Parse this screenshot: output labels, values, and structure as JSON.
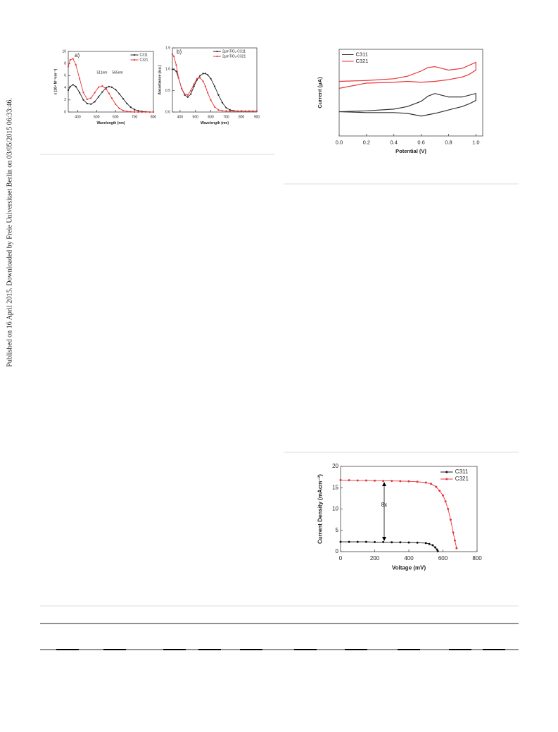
{
  "side_text": "Published on 16 April 2015. Downloaded by Freie Universitaet Berlin on 03/05/2015 06:33:46.",
  "chart_data": [
    {
      "type": "line",
      "markers": true,
      "legend": "upper right",
      "x_label": "Wavelength (nm)",
      "y_label": "ε (10⁴ M⁻¹cm⁻¹)",
      "annotations": [
        "a)",
        "511nm",
        "565nm"
      ],
      "xlim": [
        350,
        800
      ],
      "xticks": [
        400,
        500,
        600,
        700,
        800
      ],
      "ylim": [
        0,
        10
      ],
      "yticks": [
        0,
        2,
        4,
        6,
        8,
        10
      ],
      "series": [
        {
          "name": "C311",
          "color": "#222222",
          "x": [
            350,
            360,
            375,
            390,
            410,
            430,
            450,
            470,
            490,
            510,
            530,
            550,
            565,
            580,
            600,
            620,
            640,
            660,
            680,
            700,
            720,
            740,
            760,
            780,
            800
          ],
          "values": [
            3.6,
            4.2,
            4.5,
            4.2,
            3.2,
            2.0,
            1.4,
            1.3,
            1.7,
            2.5,
            3.3,
            4.0,
            4.2,
            4.1,
            3.7,
            3.0,
            2.2,
            1.4,
            0.8,
            0.4,
            0.2,
            0.1,
            0.05,
            0,
            0
          ]
        },
        {
          "name": "C321",
          "color": "#e8363a",
          "x": [
            350,
            360,
            375,
            390,
            410,
            430,
            450,
            470,
            490,
            510,
            530,
            550,
            565,
            580,
            600,
            620,
            640,
            660,
            680,
            700,
            720,
            740,
            760,
            780,
            800
          ],
          "values": [
            7.5,
            8.6,
            8.8,
            7.8,
            5.5,
            3.2,
            2.1,
            2.3,
            3.2,
            4.1,
            4.3,
            3.8,
            3.1,
            2.3,
            1.3,
            0.6,
            0.25,
            0.1,
            0.05,
            0,
            0,
            0,
            0,
            0,
            0
          ]
        }
      ]
    },
    {
      "type": "line",
      "markers": true,
      "legend": "upper right",
      "x_label": "Wavelength (nm)",
      "y_label": "Absorbance (a.u.)",
      "annotations": [
        "b)"
      ],
      "xlim": [
        350,
        900
      ],
      "xticks": [
        400,
        500,
        600,
        700,
        800,
        900
      ],
      "ylim": [
        0,
        1.5
      ],
      "yticks": [
        {
          "value": 0,
          "label": "0.0"
        },
        {
          "value": 0.5,
          "label": "0.5"
        },
        {
          "value": 1,
          "label": "1.0"
        },
        1.5
      ],
      "series": [
        {
          "name": "2μmTiO₂-C311",
          "color": "#222222",
          "x": [
            350,
            360,
            375,
            390,
            410,
            430,
            450,
            470,
            490,
            510,
            530,
            550,
            565,
            580,
            600,
            625,
            650,
            675,
            700,
            725,
            750,
            775,
            800,
            825,
            850,
            875,
            900
          ],
          "values": [
            1.0,
            1.0,
            0.95,
            0.8,
            0.55,
            0.4,
            0.35,
            0.42,
            0.6,
            0.75,
            0.85,
            0.9,
            0.9,
            0.87,
            0.78,
            0.6,
            0.4,
            0.22,
            0.1,
            0.05,
            0.03,
            0.02,
            0.02,
            0.02,
            0.02,
            0.02,
            0.02
          ]
        },
        {
          "name": "2μmTiO₂-C321",
          "color": "#e8363a",
          "x": [
            350,
            360,
            375,
            390,
            410,
            430,
            450,
            470,
            490,
            510,
            530,
            550,
            565,
            580,
            600,
            625,
            650,
            675,
            700,
            725,
            750,
            775,
            800,
            825,
            850,
            875,
            900
          ],
          "values": [
            1.35,
            1.3,
            1.1,
            0.8,
            0.55,
            0.42,
            0.4,
            0.5,
            0.65,
            0.78,
            0.8,
            0.72,
            0.6,
            0.45,
            0.28,
            0.12,
            0.05,
            0.03,
            0.02,
            0.02,
            0.02,
            0.02,
            0.02,
            0.02,
            0.02,
            0.02,
            0.02
          ]
        }
      ]
    },
    {
      "type": "line",
      "markers": false,
      "legend": "upper left",
      "x_label": "Potential (V)",
      "y_label": "Current (μA)",
      "annotations": [],
      "xlim": [
        0,
        1.05
      ],
      "xticks": [
        {
          "value": 0,
          "label": "0.0"
        },
        {
          "value": 0.2,
          "label": "0.2"
        },
        {
          "value": 0.4,
          "label": "0.4"
        },
        {
          "value": 0.6,
          "label": "0.6"
        },
        {
          "value": 0.8,
          "label": "0.8"
        },
        {
          "value": 1,
          "label": "1.0"
        }
      ],
      "ylim": [
        0,
        10
      ],
      "yticks": [],
      "series": [
        {
          "name": "C311",
          "color": "#333333",
          "x": [
            0,
            0.2,
            0.4,
            0.5,
            0.6,
            0.65,
            0.7,
            0.75,
            0.8,
            0.9,
            1.0,
            1.0,
            0.95,
            0.9,
            0.8,
            0.7,
            0.6,
            0.5,
            0.4,
            0.2,
            0
          ],
          "values": [
            2.8,
            2.9,
            3.1,
            3.4,
            4.0,
            4.6,
            4.9,
            4.7,
            4.5,
            4.5,
            4.9,
            4.1,
            3.7,
            3.4,
            3.0,
            2.6,
            2.3,
            2.6,
            2.7,
            2.7,
            2.8
          ]
        },
        {
          "name": "C321",
          "color": "#e8363a",
          "x": [
            0,
            0.2,
            0.4,
            0.5,
            0.6,
            0.65,
            0.7,
            0.75,
            0.8,
            0.9,
            1.0,
            1.0,
            0.95,
            0.9,
            0.8,
            0.7,
            0.6,
            0.5,
            0.4,
            0.2,
            0
          ],
          "values": [
            6.3,
            6.4,
            6.6,
            6.9,
            7.5,
            7.9,
            8.0,
            7.8,
            7.6,
            7.8,
            8.5,
            7.6,
            7.1,
            6.8,
            6.5,
            6.3,
            6.2,
            6.3,
            6.2,
            6.1,
            5.5
          ]
        }
      ]
    },
    {
      "type": "line",
      "markers": true,
      "legend": "upper right",
      "x_label": "Voltage (mV)",
      "y_label": "Current Density (mAcm⁻²)",
      "annotations": [
        "8x"
      ],
      "xlim": [
        0,
        800
      ],
      "xticks": [
        0,
        200,
        400,
        600,
        800
      ],
      "ylim": [
        0,
        20
      ],
      "yticks": [
        0,
        5,
        10,
        15,
        20
      ],
      "series": [
        {
          "name": "C311",
          "color": "#111111",
          "x": [
            0,
            50,
            100,
            150,
            200,
            250,
            300,
            350,
            400,
            450,
            500,
            520,
            540,
            555,
            565,
            570
          ],
          "values": [
            2.3,
            2.3,
            2.3,
            2.3,
            2.25,
            2.25,
            2.2,
            2.2,
            2.15,
            2.1,
            2.0,
            1.8,
            1.5,
            1.0,
            0.5,
            0.1
          ]
        },
        {
          "name": "C321",
          "color": "#e8363a",
          "x": [
            0,
            50,
            100,
            150,
            200,
            250,
            300,
            350,
            400,
            450,
            500,
            530,
            560,
            580,
            600,
            615,
            630,
            645,
            660,
            670,
            680
          ],
          "values": [
            16.8,
            16.75,
            16.7,
            16.7,
            16.65,
            16.6,
            16.6,
            16.55,
            16.5,
            16.4,
            16.2,
            15.9,
            15.2,
            14.3,
            13.2,
            11.8,
            10,
            7.5,
            4.5,
            2.6,
            0.8
          ]
        }
      ]
    }
  ]
}
